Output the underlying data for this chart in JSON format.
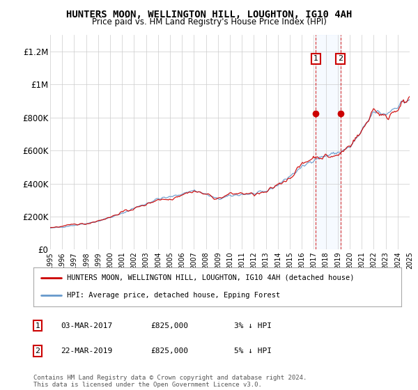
{
  "title": "HUNTERS MOON, WELLINGTON HILL, LOUGHTON, IG10 4AH",
  "subtitle": "Price paid vs. HM Land Registry's House Price Index (HPI)",
  "ylim": [
    0,
    1300000
  ],
  "yticks": [
    0,
    200000,
    400000,
    600000,
    800000,
    1000000,
    1200000
  ],
  "ytick_labels": [
    "£0",
    "£200K",
    "£400K",
    "£600K",
    "£800K",
    "£1M",
    "£1.2M"
  ],
  "legend_line1": "HUNTERS MOON, WELLINGTON HILL, LOUGHTON, IG10 4AH (detached house)",
  "legend_line2": "HPI: Average price, detached house, Epping Forest",
  "line1_color": "#cc0000",
  "line2_color": "#6699cc",
  "shade_color": "#ddeeff",
  "annotation1_label": "1",
  "annotation1_date": "03-MAR-2017",
  "annotation1_price": "£825,000",
  "annotation1_hpi": "3% ↓ HPI",
  "annotation1_year": 2017.17,
  "annotation1_value": 825000,
  "annotation2_label": "2",
  "annotation2_date": "22-MAR-2019",
  "annotation2_price": "£825,000",
  "annotation2_hpi": "5% ↓ HPI",
  "annotation2_year": 2019.22,
  "annotation2_value": 825000,
  "footer": "Contains HM Land Registry data © Crown copyright and database right 2024.\nThis data is licensed under the Open Government Licence v3.0.",
  "background_color": "#ffffff",
  "grid_color": "#cccccc",
  "xlim_start": 1995,
  "xlim_end": 2025
}
